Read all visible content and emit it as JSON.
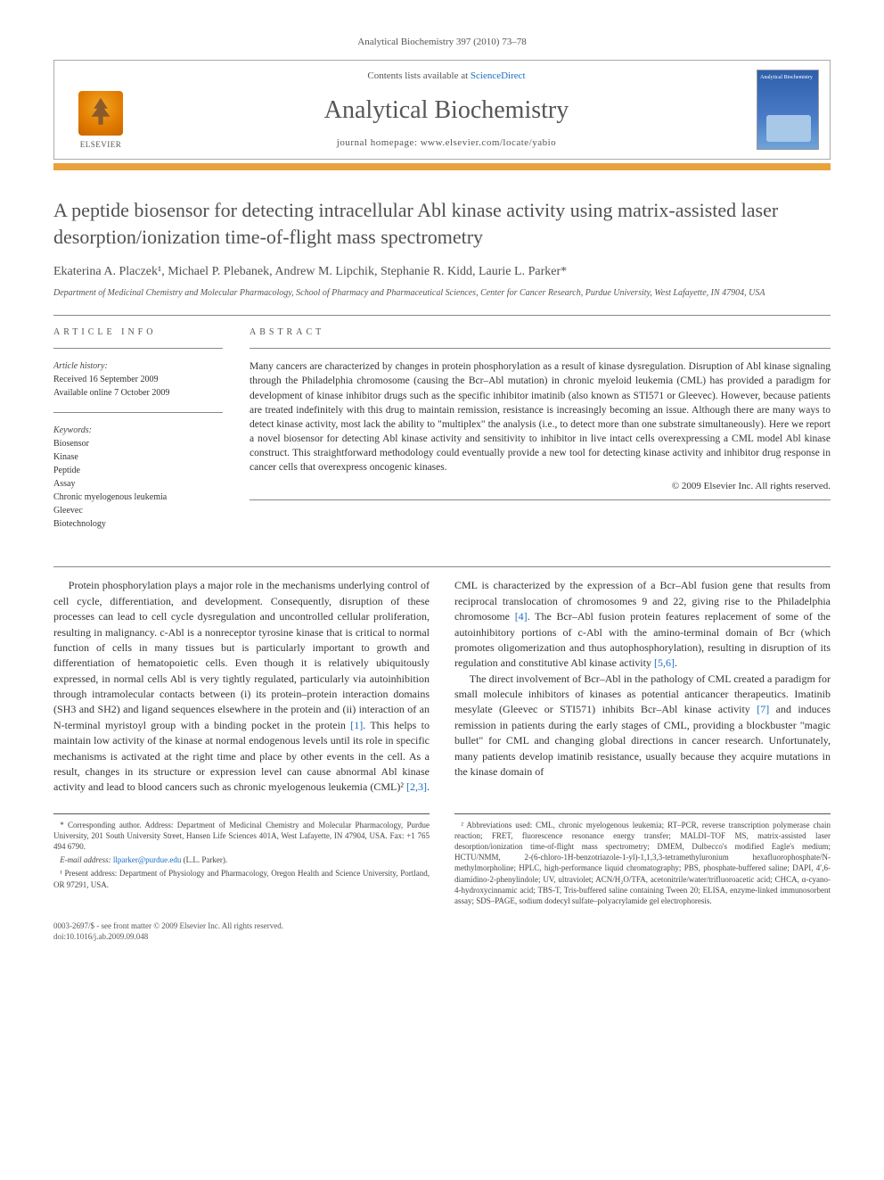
{
  "journal_header_line": "Analytical Biochemistry 397 (2010) 73–78",
  "header": {
    "contents_prefix": "Contents lists available at ",
    "contents_link": "ScienceDirect",
    "journal_title": "Analytical Biochemistry",
    "homepage_prefix": "journal homepage: ",
    "homepage_url": "www.elsevier.com/locate/yabio",
    "elsevier_label": "ELSEVIER",
    "cover_title": "Analytical Biochemistry"
  },
  "article": {
    "title": "A peptide biosensor for detecting intracellular Abl kinase activity using matrix-assisted laser desorption/ionization time-of-flight mass spectrometry",
    "authors": "Ekaterina A. Placzek¹, Michael P. Plebanek, Andrew M. Lipchik, Stephanie R. Kidd, Laurie L. Parker*",
    "affiliation": "Department of Medicinal Chemistry and Molecular Pharmacology, School of Pharmacy and Pharmaceutical Sciences, Center for Cancer Research, Purdue University, West Lafayette, IN 47904, USA"
  },
  "info": {
    "heading_info": "ARTICLE INFO",
    "heading_abstract": "ABSTRACT",
    "history_label": "Article history:",
    "received": "Received 16 September 2009",
    "online": "Available online 7 October 2009",
    "keywords_label": "Keywords:",
    "keywords": [
      "Biosensor",
      "Kinase",
      "Peptide",
      "Assay",
      "Chronic myelogenous leukemia",
      "Gleevec",
      "Biotechnology"
    ]
  },
  "abstract": {
    "text": "Many cancers are characterized by changes in protein phosphorylation as a result of kinase dysregulation. Disruption of Abl kinase signaling through the Philadelphia chromosome (causing the Bcr–Abl mutation) in chronic myeloid leukemia (CML) has provided a paradigm for development of kinase inhibitor drugs such as the specific inhibitor imatinib (also known as STI571 or Gleevec). However, because patients are treated indefinitely with this drug to maintain remission, resistance is increasingly becoming an issue. Although there are many ways to detect kinase activity, most lack the ability to \"multiplex\" the analysis (i.e., to detect more than one substrate simultaneously). Here we report a novel biosensor for detecting Abl kinase activity and sensitivity to inhibitor in live intact cells overexpressing a CML model Abl kinase construct. This straightforward methodology could eventually provide a new tool for detecting kinase activity and inhibitor drug response in cancer cells that overexpress oncogenic kinases.",
    "copyright": "© 2009 Elsevier Inc. All rights reserved."
  },
  "body": {
    "p1": "Protein phosphorylation plays a major role in the mechanisms underlying control of cell cycle, differentiation, and development. Consequently, disruption of these processes can lead to cell cycle dysregulation and uncontrolled cellular proliferation, resulting in malignancy. c-Abl is a nonreceptor tyrosine kinase that is critical to normal function of cells in many tissues but is particularly important to growth and differentiation of hematopoietic cells. Even though it is relatively ubiquitously expressed, in normal cells Abl is very tightly regulated, particularly via autoinhibition through intramolecular contacts between (i) its protein–protein interaction domains (SH3 and SH2) and ligand sequences elsewhere in the protein and (ii) interaction of an N-terminal myristoyl group with a binding pocket in the protein ",
    "ref1": "[1]",
    "p1b": ". This helps to maintain low activity of the kinase at normal endogenous levels until its role in specific mechanisms is activated at the right time and place by other events in the cell. As a result, changes in its structure or expression level can cause abnormal Abl kinase activity and lead",
    "p2a": "to blood cancers such as chronic myelogenous leukemia (CML)² ",
    "ref23": "[2,3]",
    "p2b": ". CML is characterized by the expression of a Bcr–Abl fusion gene that results from reciprocal translocation of chromosomes 9 and 22, giving rise to the Philadelphia chromosome ",
    "ref4": "[4]",
    "p2c": ". The Bcr–Abl fusion protein features replacement of some of the autoinhibitory portions of c-Abl with the amino-terminal domain of Bcr (which promotes oligomerization and thus autophosphorylation), resulting in disruption of its regulation and constitutive Abl kinase activity ",
    "ref56": "[5,6]",
    "p2d": ".",
    "p3a": "The direct involvement of Bcr–Abl in the pathology of CML created a paradigm for small molecule inhibitors of kinases as potential anticancer therapeutics. Imatinib mesylate (Gleevec or STI571) inhibits Bcr–Abl kinase activity ",
    "ref7": "[7]",
    "p3b": " and induces remission in patients during the early stages of CML, providing a blockbuster \"magic bullet\" for CML and changing global directions in cancer research. Unfortunately, many patients develop imatinib resistance, usually because they acquire mutations in the kinase domain of"
  },
  "footnotes": {
    "left": {
      "corr": "* Corresponding author. Address: Department of Medicinal Chemistry and Molecular Pharmacology, Purdue University, 201 South University Street, Hansen Life Sciences 401A, West Lafayette, IN 47904, USA. Fax: +1 765 494 6790.",
      "email_label": "E-mail address: ",
      "email": "llparker@purdue.edu",
      "email_suffix": " (L.L. Parker).",
      "present": "¹ Present address: Department of Physiology and Pharmacology, Oregon Health and Science University, Portland, OR 97291, USA."
    },
    "right": {
      "abbrev": "² Abbreviations used: CML, chronic myelogenous leukemia; RT–PCR, reverse transcription polymerase chain reaction; FRET, fluorescence resonance energy transfer; MALDI–TOF MS, matrix-assisted laser desorption/ionization time-of-flight mass spectrometry; DMEM, Dulbecco's modified Eagle's medium; HCTU/NMM, 2-(6-chloro-1H-benzotriazole-1-yl)-1,1,3,3-tetramethyluronium hexafluorophosphate/N-methylmorpholine; HPLC, high-performance liquid chromatography; PBS, phosphate-buffered saline; DAPI, 4′,6-diamidino-2-phenylindole; UV, ultraviolet; ACN/H₂O/TFA, acetonitrile/water/trifluoroacetic acid; CHCA, α-cyano-4-hydroxycinnamic acid; TBS-T, Tris-buffered saline containing Tween 20; ELISA, enzyme-linked immunosorbent assay; SDS–PAGE, sodium dodecyl sulfate–polyacrylamide gel electrophoresis."
    }
  },
  "bottom": {
    "line1": "0003-2697/$ - see front matter © 2009 Elsevier Inc. All rights reserved.",
    "line2": "doi:10.1016/j.ab.2009.09.048"
  },
  "colors": {
    "accent_orange": "#e8a33d",
    "link_blue": "#1b6ec2",
    "text_gray": "#505050"
  }
}
